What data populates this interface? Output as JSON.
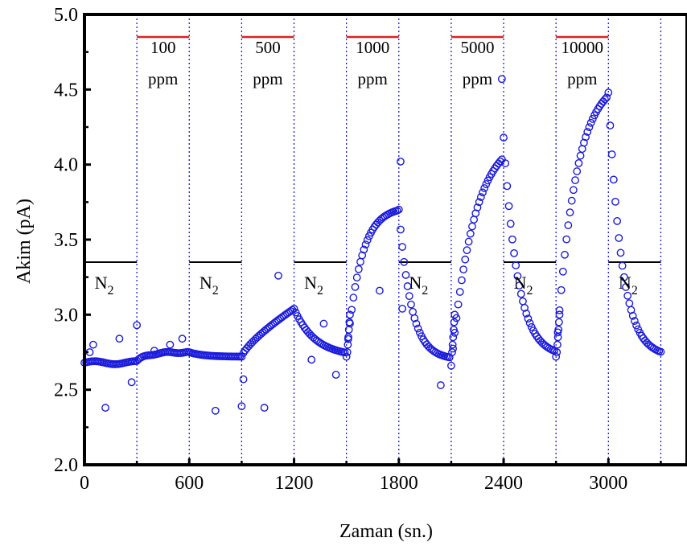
{
  "chart_data": {
    "type": "scatter",
    "xlabel": "Zaman (sn.)",
    "ylabel": "Akim (pA)",
    "xlim": [
      0,
      3450
    ],
    "ylim": [
      2.0,
      5.0
    ],
    "xticks": [
      "0",
      "600",
      "1200",
      "1800",
      "2400",
      "3000"
    ],
    "yticks": [
      "2.0",
      "2.5",
      "3.0",
      "3.5",
      "4.0",
      "4.5",
      "5.0"
    ],
    "grid": false,
    "marker": "open-circle",
    "colors": {
      "points": "#1a1adc",
      "gas_bar": "#dd2222",
      "n2_bar": "#000000",
      "dividers": "#1a1adc"
    },
    "dividers_x": [
      300,
      600,
      900,
      1200,
      1500,
      1800,
      2100,
      2400,
      2700,
      3000,
      3300
    ],
    "gas_intervals": [
      {
        "x": [
          300,
          600
        ],
        "label_top": "100",
        "label_bottom": "ppm"
      },
      {
        "x": [
          900,
          1200
        ],
        "label_top": "500",
        "label_bottom": "ppm"
      },
      {
        "x": [
          1500,
          1800
        ],
        "label_top": "1000",
        "label_bottom": "ppm"
      },
      {
        "x": [
          2100,
          2400
        ],
        "label_top": "5000",
        "label_bottom": "ppm"
      },
      {
        "x": [
          2700,
          3000
        ],
        "label_top": "10000",
        "label_bottom": "ppm"
      }
    ],
    "gas_bar_y": 4.85,
    "n2_intervals": [
      {
        "x": [
          0,
          300
        ],
        "label": "N",
        "sub": "2"
      },
      {
        "x": [
          600,
          900
        ],
        "label": "N",
        "sub": "2"
      },
      {
        "x": [
          1200,
          1500
        ],
        "label": "N",
        "sub": "2"
      },
      {
        "x": [
          1800,
          2100
        ],
        "label": "N",
        "sub": "2"
      },
      {
        "x": [
          2400,
          2700
        ],
        "label": "N",
        "sub": "2"
      },
      {
        "x": [
          3000,
          3300
        ],
        "label": "N",
        "sub": "2"
      }
    ],
    "n2_bar_y": 3.35,
    "outliers": [
      [
        30,
        2.75
      ],
      [
        50,
        2.8
      ],
      [
        120,
        2.38
      ],
      [
        200,
        2.84
      ],
      [
        270,
        2.55
      ],
      [
        300,
        2.93
      ],
      [
        400,
        2.76
      ],
      [
        490,
        2.8
      ],
      [
        560,
        2.84
      ],
      [
        750,
        2.36
      ],
      [
        900,
        2.39
      ],
      [
        910,
        2.57
      ],
      [
        1030,
        2.38
      ],
      [
        1110,
        3.26
      ],
      [
        1300,
        2.7
      ],
      [
        1370,
        2.94
      ],
      [
        1440,
        2.6
      ],
      [
        1690,
        3.16
      ],
      [
        1810,
        4.02
      ],
      [
        1820,
        3.04
      ],
      [
        2040,
        2.53
      ],
      [
        2390,
        4.57
      ]
    ]
  }
}
